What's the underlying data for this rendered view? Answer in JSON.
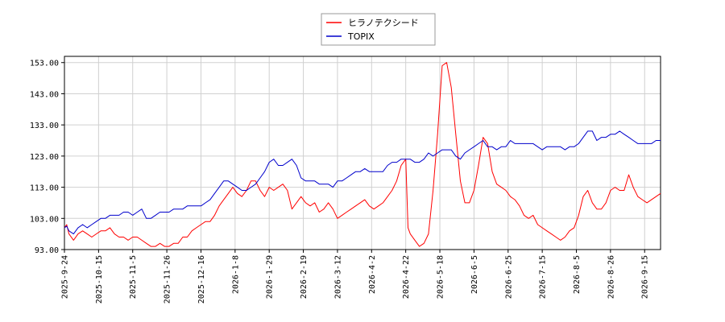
{
  "chart_data": {
    "type": "line",
    "grid": true,
    "legend_placement": "top-center",
    "ylim": [
      93,
      155
    ],
    "y_ticks": [
      93,
      103,
      113,
      123,
      133,
      143,
      153
    ],
    "y_tick_labels": [
      "93.00",
      "103.00",
      "113.00",
      "123.00",
      "133.00",
      "143.00",
      "153.00"
    ],
    "x_tick_labels": [
      "2025-9-24",
      "2025-10-15",
      "2025-11-5",
      "2025-11-26",
      "2025-12-16",
      "2026-1-8",
      "2026-1-29",
      "2026-2-19",
      "2026-3-12",
      "2026-4-2",
      "2026-4-22",
      "2026-5-18",
      "2026-6-5",
      "2026-6-25",
      "2026-7-15",
      "2026-8-5",
      "2026-8-26",
      "2026-9-15"
    ],
    "series": [
      {
        "name": "ヒラノテクシード",
        "color": "#ff0000",
        "points": [
          [
            0,
            100
          ],
          [
            0.5,
            101
          ],
          [
            1,
            98
          ],
          [
            2,
            96
          ],
          [
            3,
            98
          ],
          [
            4,
            99
          ],
          [
            5,
            98
          ],
          [
            6,
            97
          ],
          [
            7,
            98
          ],
          [
            8,
            99
          ],
          [
            9,
            99
          ],
          [
            10,
            100
          ],
          [
            11,
            98
          ],
          [
            12,
            97
          ],
          [
            13,
            97
          ],
          [
            14,
            96
          ],
          [
            15,
            97
          ],
          [
            16,
            97
          ],
          [
            17,
            96
          ],
          [
            18,
            95
          ],
          [
            19,
            94
          ],
          [
            20,
            94
          ],
          [
            21,
            95
          ],
          [
            22,
            94
          ],
          [
            23,
            94
          ],
          [
            24,
            95
          ],
          [
            25,
            95
          ],
          [
            26,
            97
          ],
          [
            27,
            97
          ],
          [
            28,
            99
          ],
          [
            29,
            100
          ],
          [
            30,
            101
          ],
          [
            31,
            102
          ],
          [
            32,
            102
          ],
          [
            33,
            104
          ],
          [
            34,
            107
          ],
          [
            35,
            109
          ],
          [
            36,
            111
          ],
          [
            37,
            113
          ],
          [
            38,
            111
          ],
          [
            39,
            110
          ],
          [
            40,
            112
          ],
          [
            41,
            115
          ],
          [
            42,
            115
          ],
          [
            43,
            112
          ],
          [
            44,
            110
          ],
          [
            45,
            113
          ],
          [
            46,
            112
          ],
          [
            47,
            113
          ],
          [
            48,
            114
          ],
          [
            49,
            112
          ],
          [
            50,
            106
          ],
          [
            51,
            108
          ],
          [
            52,
            110
          ],
          [
            53,
            108
          ],
          [
            54,
            107
          ],
          [
            55,
            108
          ],
          [
            56,
            105
          ],
          [
            57,
            106
          ],
          [
            58,
            108
          ],
          [
            59,
            106
          ],
          [
            60,
            103
          ],
          [
            61,
            104
          ],
          [
            62,
            105
          ],
          [
            63,
            106
          ],
          [
            64,
            107
          ],
          [
            65,
            108
          ],
          [
            66,
            109
          ],
          [
            67,
            107
          ],
          [
            68,
            106
          ],
          [
            69,
            107
          ],
          [
            70,
            108
          ],
          [
            71,
            110
          ],
          [
            72,
            112
          ],
          [
            73,
            115
          ],
          [
            74,
            120
          ],
          [
            75,
            122
          ],
          [
            75.5,
            100
          ],
          [
            76,
            98
          ],
          [
            77,
            96
          ],
          [
            78,
            94
          ],
          [
            79,
            95
          ],
          [
            80,
            98
          ],
          [
            81,
            112
          ],
          [
            82,
            130
          ],
          [
            83,
            152
          ],
          [
            84,
            153
          ],
          [
            85,
            145
          ],
          [
            86,
            130
          ],
          [
            87,
            115
          ],
          [
            88,
            108
          ],
          [
            89,
            108
          ],
          [
            90,
            112
          ],
          [
            91,
            120
          ],
          [
            92,
            129
          ],
          [
            93,
            127
          ],
          [
            94,
            118
          ],
          [
            95,
            114
          ],
          [
            96,
            113
          ],
          [
            97,
            112
          ],
          [
            98,
            110
          ],
          [
            99,
            109
          ],
          [
            100,
            107
          ],
          [
            101,
            104
          ],
          [
            102,
            103
          ],
          [
            103,
            104
          ],
          [
            104,
            101
          ],
          [
            105,
            100
          ],
          [
            106,
            99
          ],
          [
            107,
            98
          ],
          [
            108,
            97
          ],
          [
            109,
            96
          ],
          [
            110,
            97
          ],
          [
            111,
            99
          ],
          [
            112,
            100
          ],
          [
            113,
            104
          ],
          [
            114,
            110
          ],
          [
            115,
            112
          ],
          [
            116,
            108
          ],
          [
            117,
            106
          ],
          [
            118,
            106
          ],
          [
            119,
            108
          ],
          [
            120,
            112
          ],
          [
            121,
            113
          ],
          [
            122,
            112
          ],
          [
            123,
            112
          ],
          [
            124,
            117
          ],
          [
            125,
            113
          ],
          [
            126,
            110
          ],
          [
            127,
            109
          ],
          [
            128,
            108
          ],
          [
            129,
            109
          ],
          [
            130,
            110
          ],
          [
            131,
            111
          ]
        ]
      },
      {
        "name": "TOPIX",
        "color": "#0000cc",
        "points": [
          [
            0,
            100
          ],
          [
            0.5,
            100.5
          ],
          [
            1,
            99
          ],
          [
            2,
            98
          ],
          [
            3,
            100
          ],
          [
            4,
            101
          ],
          [
            5,
            100
          ],
          [
            6,
            101
          ],
          [
            7,
            102
          ],
          [
            8,
            103
          ],
          [
            9,
            103
          ],
          [
            10,
            104
          ],
          [
            11,
            104
          ],
          [
            12,
            104
          ],
          [
            13,
            105
          ],
          [
            14,
            105
          ],
          [
            15,
            104
          ],
          [
            16,
            105
          ],
          [
            17,
            106
          ],
          [
            18,
            103
          ],
          [
            19,
            103
          ],
          [
            20,
            104
          ],
          [
            21,
            105
          ],
          [
            22,
            105
          ],
          [
            23,
            105
          ],
          [
            24,
            106
          ],
          [
            25,
            106
          ],
          [
            26,
            106
          ],
          [
            27,
            107
          ],
          [
            28,
            107
          ],
          [
            29,
            107
          ],
          [
            30,
            107
          ],
          [
            31,
            108
          ],
          [
            32,
            109
          ],
          [
            33,
            111
          ],
          [
            34,
            113
          ],
          [
            35,
            115
          ],
          [
            36,
            115
          ],
          [
            37,
            114
          ],
          [
            38,
            113
          ],
          [
            39,
            112
          ],
          [
            40,
            112
          ],
          [
            41,
            113
          ],
          [
            42,
            114
          ],
          [
            43,
            116
          ],
          [
            44,
            118
          ],
          [
            45,
            121
          ],
          [
            46,
            122
          ],
          [
            47,
            120
          ],
          [
            48,
            120
          ],
          [
            49,
            121
          ],
          [
            50,
            122
          ],
          [
            51,
            120
          ],
          [
            52,
            116
          ],
          [
            53,
            115
          ],
          [
            54,
            115
          ],
          [
            55,
            115
          ],
          [
            56,
            114
          ],
          [
            57,
            114
          ],
          [
            58,
            114
          ],
          [
            59,
            113
          ],
          [
            60,
            115
          ],
          [
            61,
            115
          ],
          [
            62,
            116
          ],
          [
            63,
            117
          ],
          [
            64,
            118
          ],
          [
            65,
            118
          ],
          [
            66,
            119
          ],
          [
            67,
            118
          ],
          [
            68,
            118
          ],
          [
            69,
            118
          ],
          [
            70,
            118
          ],
          [
            71,
            120
          ],
          [
            72,
            121
          ],
          [
            73,
            121
          ],
          [
            74,
            122
          ],
          [
            75,
            122
          ],
          [
            76,
            122
          ],
          [
            77,
            121
          ],
          [
            78,
            121
          ],
          [
            79,
            122
          ],
          [
            80,
            124
          ],
          [
            81,
            123
          ],
          [
            82,
            124
          ],
          [
            83,
            125
          ],
          [
            84,
            125
          ],
          [
            85,
            125
          ],
          [
            86,
            123
          ],
          [
            87,
            122
          ],
          [
            88,
            124
          ],
          [
            89,
            125
          ],
          [
            90,
            126
          ],
          [
            91,
            127
          ],
          [
            92,
            128
          ],
          [
            93,
            126
          ],
          [
            94,
            126
          ],
          [
            95,
            125
          ],
          [
            96,
            126
          ],
          [
            97,
            126
          ],
          [
            98,
            128
          ],
          [
            99,
            127
          ],
          [
            100,
            127
          ],
          [
            101,
            127
          ],
          [
            102,
            127
          ],
          [
            103,
            127
          ],
          [
            104,
            126
          ],
          [
            105,
            125
          ],
          [
            106,
            126
          ],
          [
            107,
            126
          ],
          [
            108,
            126
          ],
          [
            109,
            126
          ],
          [
            110,
            125
          ],
          [
            111,
            126
          ],
          [
            112,
            126
          ],
          [
            113,
            127
          ],
          [
            114,
            129
          ],
          [
            115,
            131
          ],
          [
            116,
            131
          ],
          [
            117,
            128
          ],
          [
            118,
            129
          ],
          [
            119,
            129
          ],
          [
            120,
            130
          ],
          [
            121,
            130
          ],
          [
            122,
            131
          ],
          [
            123,
            130
          ],
          [
            124,
            129
          ],
          [
            125,
            128
          ],
          [
            126,
            127
          ],
          [
            127,
            127
          ],
          [
            128,
            127
          ],
          [
            129,
            127
          ],
          [
            130,
            128
          ],
          [
            131,
            128
          ]
        ]
      }
    ]
  }
}
